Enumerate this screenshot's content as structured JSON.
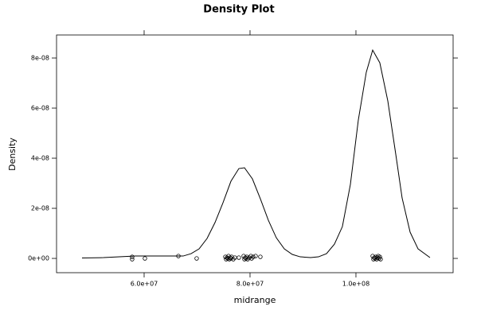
{
  "chart_data": {
    "type": "density",
    "title": "Density Plot",
    "xlabel": "midrange",
    "ylabel": "Density",
    "xlim": [
      43460000,
      118350000
    ],
    "ylim": [
      -5.7e-09,
      8.92e-08
    ],
    "xticks": [
      {
        "value": 60000000,
        "label": "6.0e+07"
      },
      {
        "value": 80000000,
        "label": "8.0e+07"
      },
      {
        "value": 100000000,
        "label": "1.0e+08"
      }
    ],
    "yticks": [
      {
        "value": 0,
        "label": "0e+00"
      },
      {
        "value": 2e-08,
        "label": "2e-08"
      },
      {
        "value": 4e-08,
        "label": "4e-08"
      },
      {
        "value": 6e-08,
        "label": "6e-08"
      },
      {
        "value": 8e-08,
        "label": "8e-08"
      }
    ],
    "color": "#000000",
    "x": [
      48270000,
      52330000,
      55340000,
      58350000,
      62860000,
      67370000,
      68870000,
      70380000,
      71880000,
      73380000,
      74890000,
      76390000,
      77890000,
      78950000,
      80450000,
      81950000,
      83460000,
      84960000,
      86470000,
      87970000,
      89470000,
      91430000,
      92930000,
      94440000,
      95940000,
      97440000,
      98950000,
      100450000,
      101950000,
      103160000,
      104510000,
      106020000,
      107520000,
      108720000,
      110230000,
      111730000,
      113980000
    ],
    "values": [
      1.6e-10,
      3.2e-10,
      6.3e-10,
      9.5e-10,
      9.5e-10,
      9.5e-10,
      1.9e-09,
      3.81e-09,
      7.94e-09,
      1.429e-08,
      2.222e-08,
      3.079e-08,
      3.587e-08,
      3.619e-08,
      3.175e-08,
      2.381e-08,
      1.524e-08,
      8.25e-09,
      3.81e-09,
      1.59e-09,
      6.3e-10,
      3.2e-10,
      6.3e-10,
      1.9e-09,
      5.71e-09,
      1.27e-08,
      2.952e-08,
      5.524e-08,
      7.429e-08,
      8.317e-08,
      7.81e-08,
      6.286e-08,
      4.159e-08,
      2.413e-08,
      1.048e-08,
      3.81e-09,
      3.2e-10
    ],
    "points": {
      "x": [
        57740000,
        57740000,
        60150000,
        66470000,
        69920000,
        75340000,
        75490000,
        75640000,
        75790000,
        75940000,
        76090000,
        76240000,
        76390000,
        76540000,
        76840000,
        77140000,
        77890000,
        78800000,
        78950000,
        79100000,
        79250000,
        79400000,
        79550000,
        79850000,
        80150000,
        80300000,
        80600000,
        81050000,
        81950000,
        103160000,
        103310000,
        103460000,
        103610000,
        103760000,
        103910000,
        104060000,
        104210000,
        104360000,
        104510000,
        104660000
      ],
      "y": [
        6.3e-10,
        -3.2e-10,
        0,
        9.5e-10,
        0,
        6.3e-10,
        -3.2e-10,
        3.2e-10,
        0,
        9.5e-10,
        -3.2e-10,
        3.2e-10,
        0,
        6.3e-10,
        -3.2e-10,
        3.2e-10,
        3.2e-10,
        9.5e-10,
        -3.2e-10,
        3.2e-10,
        0,
        6.3e-10,
        -3.2e-10,
        3.2e-10,
        9.5e-10,
        0,
        6.3e-10,
        9.5e-10,
        6.3e-10,
        9.5e-10,
        -3.2e-10,
        3.2e-10,
        0,
        6.3e-10,
        -3.2e-10,
        3.2e-10,
        9.5e-10,
        0,
        6.3e-10,
        -3.2e-10
      ]
    }
  }
}
